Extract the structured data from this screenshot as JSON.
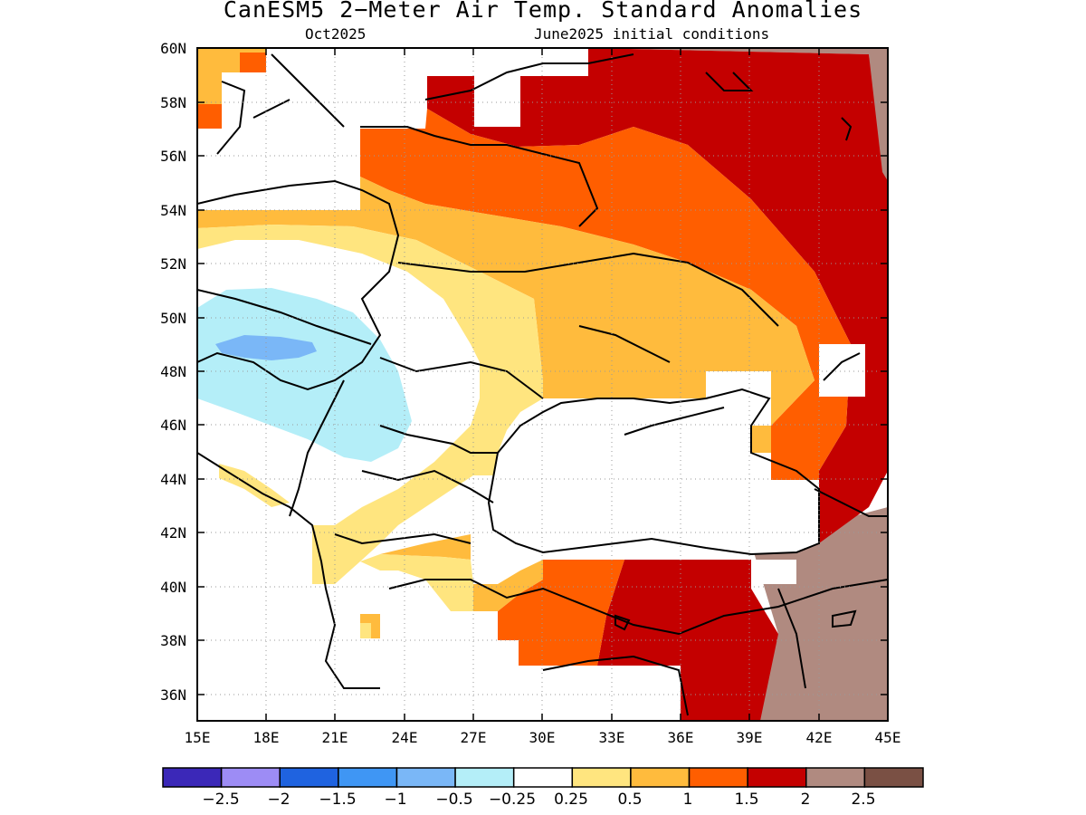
{
  "title": "CanESM5 2−Meter Air Temp. Standard Anomalies",
  "subtitle_left": "Oct2025",
  "subtitle_right": "June2025 initial conditions",
  "map": {
    "lon_ticks": [
      "15E",
      "18E",
      "21E",
      "24E",
      "27E",
      "30E",
      "33E",
      "36E",
      "39E",
      "42E",
      "45E"
    ],
    "lat_ticks": [
      "60N",
      "58N",
      "56N",
      "54N",
      "52N",
      "50N",
      "48N",
      "46N",
      "44N",
      "42N",
      "40N",
      "38N",
      "36N"
    ],
    "lon_range": [
      15,
      45
    ],
    "lat_range": [
      35,
      60
    ],
    "grid": "dotted"
  },
  "colorbar": {
    "colors": [
      "#3b28b8",
      "#9d8cf5",
      "#1f63e0",
      "#3f96f4",
      "#7ab7f7",
      "#b4eef8",
      "#ffffff",
      "#ffe57f",
      "#ffbb3d",
      "#ff5e00",
      "#c40000",
      "#b08a80",
      "#7a5044"
    ],
    "labels": [
      "−2.5",
      "−2",
      "−1.5",
      "−1",
      "−0.5",
      "−0.25",
      "0.25",
      "0.5",
      "1",
      "1.5",
      "2",
      "2.5"
    ]
  },
  "colors": {
    "positive_025": "#ffe57f",
    "positive_05": "#ffbb3d",
    "positive_1": "#ff5e00",
    "positive_15": "#c40000",
    "positive_2": "#b08a80",
    "negative_025": "#b4eef8",
    "negative_05": "#7ab7f7"
  }
}
